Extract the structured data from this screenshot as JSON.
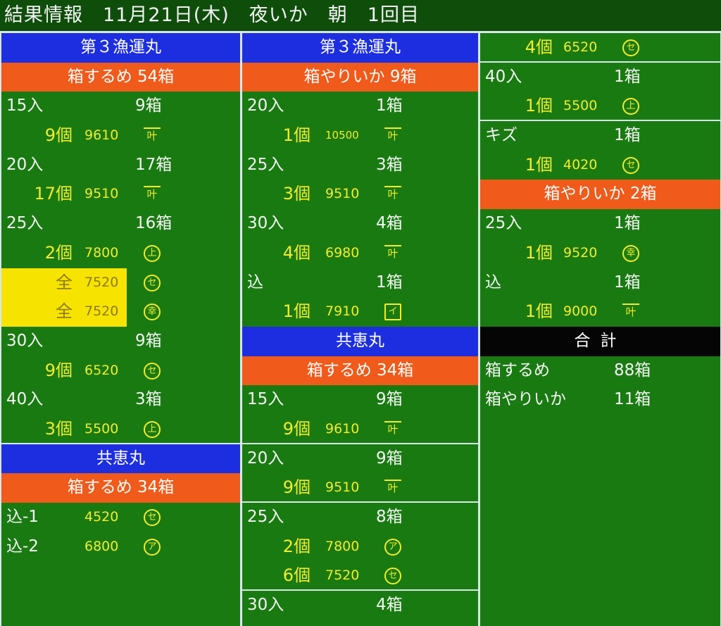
{
  "title": "結果情報　11月21日(木)　夜いか　朝　1回目",
  "colors": {
    "background": "#1a7a12",
    "ship_header": "#1d2ee0",
    "category_header": "#f05a1a",
    "highlight": "#f7e300",
    "text_lot": "#f4ec2a"
  },
  "columns": [
    {
      "rows": [
        {
          "type": "ship",
          "text": "第３漁運丸"
        },
        {
          "type": "cat",
          "text": "箱するめ 54箱"
        },
        {
          "type": "size",
          "label": "15入",
          "count": "9箱"
        },
        {
          "type": "lot",
          "qty": "9個",
          "price": "9610",
          "mark": "叶",
          "mark_style": "bar"
        },
        {
          "type": "size",
          "label": "20入",
          "count": "17箱"
        },
        {
          "type": "lot",
          "qty": "17個",
          "price": "9510",
          "mark": "叶",
          "mark_style": "bar"
        },
        {
          "type": "size",
          "label": "25入",
          "count": "16箱"
        },
        {
          "type": "lot",
          "qty": "2個",
          "price": "7800",
          "mark": "上"
        },
        {
          "type": "lot",
          "qty": "全",
          "price": "7520",
          "mark": "セ",
          "highlight": true
        },
        {
          "type": "lot",
          "qty": "全",
          "price": "7520",
          "mark": "幸",
          "highlight": true
        },
        {
          "type": "size",
          "label": "30入",
          "count": "9箱"
        },
        {
          "type": "lot",
          "qty": "9個",
          "price": "6520",
          "mark": "セ"
        },
        {
          "type": "size",
          "label": "40入",
          "count": "3箱"
        },
        {
          "type": "lot",
          "qty": "3個",
          "price": "5500",
          "mark": "上",
          "sep": true
        },
        {
          "type": "ship",
          "text": "共恵丸"
        },
        {
          "type": "cat",
          "text": "箱するめ 34箱"
        },
        {
          "type": "lotlabel",
          "label": "込-1",
          "price": "4520",
          "mark": "セ"
        },
        {
          "type": "lotlabel",
          "label": "込-2",
          "price": "6800",
          "mark": "ア"
        }
      ]
    },
    {
      "rows": [
        {
          "type": "ship",
          "text": "第３漁運丸"
        },
        {
          "type": "cat",
          "text": "箱やりいか 9箱"
        },
        {
          "type": "size",
          "label": "20入",
          "count": "1箱"
        },
        {
          "type": "lot",
          "qty": "1個",
          "price": "10500",
          "mark": "叶",
          "mark_style": "bar",
          "small": true
        },
        {
          "type": "size",
          "label": "25入",
          "count": "3箱"
        },
        {
          "type": "lot",
          "qty": "3個",
          "price": "9510",
          "mark": "叶",
          "mark_style": "bar"
        },
        {
          "type": "size",
          "label": "30入",
          "count": "4箱"
        },
        {
          "type": "lot",
          "qty": "4個",
          "price": "6980",
          "mark": "叶",
          "mark_style": "bar"
        },
        {
          "type": "size",
          "label": "込",
          "count": "1箱"
        },
        {
          "type": "lot",
          "qty": "1個",
          "price": "7910",
          "mark": "イ",
          "mark_style": "sq"
        },
        {
          "type": "ship",
          "text": "共恵丸"
        },
        {
          "type": "cat",
          "text": "箱するめ 34箱"
        },
        {
          "type": "size",
          "label": "15入",
          "count": "9箱"
        },
        {
          "type": "lot",
          "qty": "9個",
          "price": "9610",
          "mark": "叶",
          "mark_style": "bar",
          "sep": true
        },
        {
          "type": "size",
          "label": "20入",
          "count": "9箱"
        },
        {
          "type": "lot",
          "qty": "9個",
          "price": "9510",
          "mark": "叶",
          "mark_style": "bar",
          "sep": true
        },
        {
          "type": "size",
          "label": "25入",
          "count": "8箱"
        },
        {
          "type": "lot",
          "qty": "2個",
          "price": "7800",
          "mark": "ア"
        },
        {
          "type": "lot",
          "qty": "6個",
          "price": "7520",
          "mark": "セ",
          "sep": true
        },
        {
          "type": "size",
          "label": "30入",
          "count": "4箱"
        }
      ]
    },
    {
      "rows": [
        {
          "type": "lot",
          "qty": "4個",
          "price": "6520",
          "mark": "セ",
          "sep": true
        },
        {
          "type": "size",
          "label": "40入",
          "count": "1箱"
        },
        {
          "type": "lot",
          "qty": "1個",
          "price": "5500",
          "mark": "上",
          "sep": true
        },
        {
          "type": "size",
          "label": "キズ",
          "count": "1箱"
        },
        {
          "type": "lot",
          "qty": "1個",
          "price": "4020",
          "mark": "セ"
        },
        {
          "type": "cat",
          "text": "箱やりいか 2箱"
        },
        {
          "type": "size",
          "label": "25入",
          "count": "1箱"
        },
        {
          "type": "lot",
          "qty": "1個",
          "price": "9520",
          "mark": "幸"
        },
        {
          "type": "size",
          "label": "込",
          "count": "1箱"
        },
        {
          "type": "lot",
          "qty": "1個",
          "price": "9000",
          "mark": "叶",
          "mark_style": "bar"
        },
        {
          "type": "total",
          "text": "合計"
        },
        {
          "type": "size",
          "label": "箱するめ",
          "count": "88箱"
        },
        {
          "type": "size",
          "label": "箱やりいか",
          "count": "11箱"
        }
      ]
    }
  ]
}
